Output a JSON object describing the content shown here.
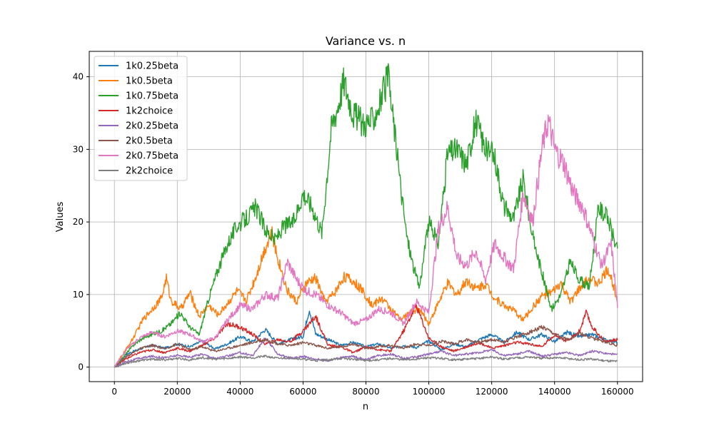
{
  "chart_data": {
    "type": "line",
    "title": "Variance vs. n",
    "xlabel": "n",
    "ylabel": "Values",
    "xlim": [
      -8000,
      168000
    ],
    "ylim": [
      -2,
      43.5
    ],
    "xticks": [
      0,
      20000,
      40000,
      60000,
      80000,
      100000,
      120000,
      140000,
      160000
    ],
    "yticks": [
      0,
      10,
      20,
      30,
      40
    ],
    "grid": true,
    "legend_position": "upper-left",
    "series": [
      {
        "name": "1k0.25beta",
        "color": "#1f77b4",
        "x": [
          0,
          4000,
          8000,
          12000,
          16000,
          20000,
          24000,
          28000,
          32000,
          36000,
          40000,
          44000,
          48000,
          52000,
          56000,
          60000,
          62000,
          64000,
          68000,
          72000,
          76000,
          80000,
          84000,
          88000,
          92000,
          96000,
          100000,
          104000,
          108000,
          112000,
          116000,
          120000,
          124000,
          128000,
          132000,
          136000,
          140000,
          144000,
          148000,
          152000,
          156000,
          160000
        ],
        "y": [
          0,
          1.8,
          2.5,
          3.0,
          2.6,
          3.2,
          2.8,
          3.6,
          2.5,
          3.2,
          4.2,
          3.5,
          5.2,
          3.2,
          3.8,
          4.2,
          8.0,
          4.6,
          3.8,
          3.0,
          3.4,
          2.8,
          3.2,
          2.6,
          3.0,
          2.7,
          3.6,
          2.4,
          3.2,
          2.8,
          3.8,
          4.5,
          3.4,
          4.8,
          3.8,
          4.5,
          3.5,
          4.8,
          4.2,
          4.5,
          3.8,
          3.4
        ]
      },
      {
        "name": "1k0.5beta",
        "color": "#ff7f0e",
        "x": [
          0,
          3000,
          6000,
          9000,
          12000,
          15000,
          16500,
          18000,
          21000,
          24000,
          27000,
          30000,
          33000,
          36000,
          39000,
          42000,
          45000,
          48000,
          50000,
          52000,
          55000,
          58000,
          61000,
          64000,
          67000,
          70000,
          73000,
          76000,
          79000,
          82000,
          85000,
          88000,
          91000,
          94000,
          97000,
          100000,
          103000,
          106000,
          109000,
          112000,
          115000,
          118000,
          121000,
          124000,
          127000,
          130000,
          133000,
          136000,
          139000,
          142000,
          145000,
          148000,
          151000,
          154000,
          157000,
          160000
        ],
        "y": [
          0,
          2.0,
          4.0,
          6.5,
          8.0,
          9.5,
          12.3,
          9.2,
          8.0,
          10.2,
          7.0,
          8.5,
          7.2,
          8.8,
          10.5,
          9.2,
          12.5,
          16.5,
          18.5,
          15.0,
          10.5,
          9.0,
          11.5,
          12.3,
          9.0,
          10.2,
          12.5,
          11.8,
          10.5,
          8.5,
          9.5,
          8.0,
          6.5,
          7.5,
          8.0,
          6.0,
          8.8,
          11.5,
          10.0,
          12.0,
          10.8,
          11.5,
          9.5,
          8.5,
          7.8,
          6.5,
          8.2,
          9.8,
          10.2,
          11.5,
          9.0,
          10.8,
          12.2,
          11.5,
          13.5,
          9.5
        ]
      },
      {
        "name": "1k0.75beta",
        "color": "#2ca02c",
        "x": [
          0,
          3000,
          6000,
          9000,
          12000,
          15000,
          18000,
          21000,
          24000,
          27000,
          30000,
          33000,
          36000,
          39000,
          42000,
          45000,
          48000,
          51000,
          54000,
          57000,
          60000,
          63000,
          66000,
          69000,
          71000,
          73000,
          76000,
          79000,
          82000,
          85000,
          87000,
          89000,
          91000,
          93000,
          95000,
          97000,
          100000,
          103000,
          106000,
          109000,
          112000,
          115000,
          118000,
          121000,
          124000,
          127000,
          130000,
          133000,
          136000,
          139000,
          142000,
          145000,
          148000,
          151000,
          154000,
          157000,
          160000
        ],
        "y": [
          0,
          1.5,
          3.0,
          4.0,
          4.5,
          5.0,
          6.0,
          7.5,
          5.5,
          4.5,
          9.5,
          13.5,
          17.0,
          19.5,
          20.5,
          22.0,
          19.0,
          17.5,
          19.5,
          20.0,
          24.0,
          22.0,
          18.5,
          33.0,
          36.0,
          39.5,
          35.0,
          33.5,
          34.0,
          37.0,
          40.0,
          33.0,
          25.0,
          18.0,
          14.0,
          11.0,
          20.0,
          17.0,
          29.5,
          30.0,
          28.0,
          34.0,
          30.0,
          29.0,
          22.0,
          20.5,
          26.0,
          18.0,
          13.0,
          8.0,
          10.0,
          14.5,
          12.0,
          11.0,
          22.0,
          20.5,
          16.0
        ]
      },
      {
        "name": "1k2choice",
        "color": "#d62728",
        "x": [
          0,
          4000,
          8000,
          12000,
          16000,
          20000,
          24000,
          28000,
          32000,
          36000,
          40000,
          44000,
          48000,
          52000,
          56000,
          60000,
          64000,
          68000,
          72000,
          76000,
          80000,
          84000,
          88000,
          92000,
          96000,
          100000,
          104000,
          108000,
          112000,
          116000,
          120000,
          124000,
          128000,
          132000,
          136000,
          140000,
          144000,
          148000,
          150000,
          152000,
          156000,
          160000
        ],
        "y": [
          0,
          1.2,
          2.0,
          2.4,
          2.0,
          2.6,
          2.2,
          3.0,
          4.0,
          6.0,
          5.5,
          4.5,
          3.2,
          3.8,
          3.5,
          5.0,
          7.0,
          3.0,
          2.8,
          2.0,
          2.8,
          2.4,
          2.2,
          5.0,
          8.5,
          4.0,
          2.8,
          2.2,
          2.8,
          3.4,
          2.6,
          3.0,
          3.4,
          3.2,
          2.8,
          4.5,
          3.5,
          5.0,
          7.5,
          5.5,
          3.5,
          3.8
        ]
      },
      {
        "name": "2k0.25beta",
        "color": "#9467bd",
        "x": [
          0,
          4000,
          8000,
          12000,
          16000,
          20000,
          24000,
          28000,
          32000,
          36000,
          40000,
          44000,
          48000,
          52000,
          56000,
          60000,
          64000,
          68000,
          72000,
          76000,
          80000,
          84000,
          88000,
          92000,
          96000,
          100000,
          104000,
          108000,
          112000,
          116000,
          120000,
          124000,
          128000,
          132000,
          136000,
          140000,
          144000,
          148000,
          152000,
          156000,
          160000
        ],
        "y": [
          0,
          0.8,
          1.2,
          1.5,
          1.3,
          1.6,
          1.4,
          1.8,
          1.2,
          1.5,
          2.0,
          1.6,
          4.0,
          1.8,
          1.2,
          1.5,
          1.1,
          0.9,
          1.3,
          1.5,
          1.0,
          1.6,
          1.8,
          1.2,
          1.4,
          1.8,
          2.2,
          1.6,
          1.8,
          2.0,
          2.4,
          1.6,
          1.8,
          2.2,
          1.5,
          1.8,
          2.0,
          1.6,
          2.2,
          1.9,
          1.7
        ]
      },
      {
        "name": "2k0.5beta",
        "color": "#8c564b",
        "x": [
          0,
          4000,
          8000,
          12000,
          16000,
          20000,
          24000,
          28000,
          32000,
          36000,
          40000,
          44000,
          48000,
          52000,
          56000,
          60000,
          64000,
          68000,
          72000,
          76000,
          80000,
          84000,
          88000,
          92000,
          96000,
          100000,
          104000,
          108000,
          112000,
          116000,
          120000,
          124000,
          128000,
          132000,
          136000,
          140000,
          144000,
          148000,
          152000,
          156000,
          160000
        ],
        "y": [
          0,
          1.5,
          2.5,
          3.0,
          2.5,
          3.2,
          2.4,
          2.8,
          2.2,
          2.6,
          3.0,
          3.4,
          3.8,
          3.2,
          3.0,
          3.4,
          3.0,
          2.6,
          2.8,
          3.2,
          2.6,
          2.8,
          3.0,
          2.6,
          3.2,
          3.0,
          3.6,
          3.2,
          3.8,
          3.4,
          3.8,
          3.5,
          4.2,
          4.8,
          5.5,
          4.5,
          3.8,
          4.6,
          4.0,
          3.5,
          3.0
        ]
      },
      {
        "name": "2k0.75beta",
        "color": "#e377c2",
        "x": [
          0,
          4000,
          8000,
          12000,
          16000,
          20000,
          24000,
          28000,
          32000,
          36000,
          40000,
          44000,
          48000,
          52000,
          55000,
          58000,
          61000,
          64000,
          68000,
          72000,
          76000,
          80000,
          84000,
          88000,
          92000,
          96000,
          100000,
          103000,
          106000,
          109000,
          112000,
          115000,
          118000,
          121000,
          124000,
          127000,
          130000,
          133000,
          136000,
          138000,
          140000,
          143000,
          146000,
          149000,
          152000,
          155000,
          158000,
          160000
        ],
        "y": [
          0,
          2.5,
          4.0,
          4.8,
          4.2,
          5.0,
          4.5,
          3.5,
          4.0,
          6.5,
          8.5,
          8.0,
          10.0,
          9.5,
          14.5,
          12.0,
          10.5,
          10.0,
          8.5,
          7.5,
          6.0,
          6.5,
          8.0,
          7.5,
          6.0,
          9.0,
          7.5,
          19.0,
          22.0,
          15.0,
          14.0,
          16.0,
          12.0,
          17.0,
          15.0,
          13.5,
          24.0,
          20.0,
          30.0,
          34.0,
          30.0,
          28.0,
          24.0,
          22.0,
          18.0,
          14.0,
          17.0,
          8.5
        ]
      },
      {
        "name": "2k2choice",
        "color": "#7f7f7f",
        "x": [
          0,
          4000,
          8000,
          12000,
          16000,
          20000,
          24000,
          28000,
          32000,
          36000,
          40000,
          44000,
          48000,
          52000,
          56000,
          60000,
          64000,
          68000,
          72000,
          76000,
          80000,
          84000,
          88000,
          92000,
          96000,
          100000,
          104000,
          108000,
          112000,
          116000,
          120000,
          124000,
          128000,
          132000,
          136000,
          140000,
          144000,
          148000,
          152000,
          156000,
          160000
        ],
        "y": [
          0,
          0.6,
          0.9,
          1.1,
          1.0,
          1.2,
          1.0,
          1.3,
          1.1,
          1.2,
          1.4,
          1.3,
          1.5,
          1.2,
          1.3,
          1.1,
          0.9,
          1.0,
          1.2,
          1.1,
          0.9,
          1.0,
          1.2,
          1.0,
          1.1,
          1.3,
          1.2,
          1.0,
          1.1,
          1.2,
          1.4,
          1.1,
          1.3,
          1.4,
          1.2,
          1.3,
          1.2,
          1.0,
          1.1,
          0.9,
          0.8
        ]
      }
    ]
  }
}
